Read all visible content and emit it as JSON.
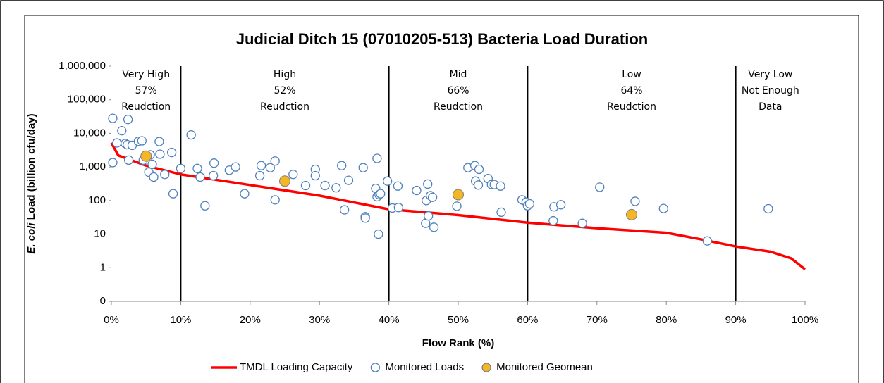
{
  "chart_data": {
    "type": "scatter",
    "title": "Judicial Ditch 15 (07010205-513) Bacteria Load Duration",
    "x_label": "Flow Rank (%)",
    "y_label_italic": "E. coli",
    "y_label_rest": " Load (billion cfu/day)",
    "log_y": true,
    "xlim": [
      0,
      100
    ],
    "ylim": [
      0.1,
      1000000
    ],
    "xticks": [
      {
        "value": 0,
        "label": "0%"
      },
      {
        "value": 10,
        "label": "10%"
      },
      {
        "value": 20,
        "label": "20%"
      },
      {
        "value": 30,
        "label": "30%"
      },
      {
        "value": 40,
        "label": "40%"
      },
      {
        "value": 50,
        "label": "50%"
      },
      {
        "value": 60,
        "label": "60%"
      },
      {
        "value": 70,
        "label": "70%"
      },
      {
        "value": 80,
        "label": "80%"
      },
      {
        "value": 90,
        "label": "90%"
      },
      {
        "value": 100,
        "label": "100%"
      }
    ],
    "yticks": [
      {
        "value": 0.1,
        "label": "0"
      },
      1,
      10,
      100,
      {
        "value": 1000,
        "label": "1,000"
      },
      {
        "value": 10000,
        "label": "10,000"
      },
      {
        "value": 100000,
        "label": "100,000"
      },
      {
        "value": 1000000,
        "label": "1,000,000"
      }
    ],
    "zone_dividers": [
      10,
      40,
      60,
      90
    ],
    "zones": [
      {
        "lines": [
          "Very High",
          "57%",
          "Reudction"
        ]
      },
      {
        "lines": [
          "High",
          "52%",
          "Reudction"
        ]
      },
      {
        "lines": [
          "Mid",
          "66%",
          "Reudction"
        ]
      },
      {
        "lines": [
          "Low",
          "64%",
          "Reudction"
        ]
      },
      {
        "lines": [
          "Very Low",
          "Not Enough",
          "Data"
        ]
      }
    ],
    "legend": "bottom",
    "series": [
      {
        "name": "TMDL Loading Capacity",
        "mark": "line",
        "color": "#ff0000",
        "x": [
          0,
          1,
          5,
          10,
          20,
          30,
          40,
          50,
          60,
          70,
          80,
          85,
          90,
          95,
          98,
          100
        ],
        "values": [
          5200,
          2200,
          1100,
          600,
          290,
          140,
          55,
          37,
          22,
          15,
          11,
          7,
          4.3,
          3,
          1.9,
          0.9
        ]
      },
      {
        "name": "Monitored Loads",
        "mark": "open-circle",
        "color": "#4f81bd",
        "x": [
          0.2,
          0.2,
          0.8,
          1.5,
          2,
          2.4,
          2.3,
          2.5,
          3,
          3.9,
          4.4,
          4.6,
          5.4,
          5.6,
          5.9,
          6.1,
          6.9,
          7,
          7.7,
          8.7,
          8.9,
          10,
          11.5,
          12.4,
          12.8,
          13.5,
          14.7,
          14.8,
          17,
          17.9,
          19.2,
          21.4,
          21.6,
          22.9,
          23.6,
          23.6,
          26.2,
          28,
          29.4,
          29.4,
          30.8,
          32.4,
          33.2,
          33.6,
          34.2,
          36.3,
          36.6,
          36.6,
          38.1,
          38.3,
          38.3,
          38.5,
          38.6,
          38.8,
          39.8,
          40.5,
          41.3,
          41.4,
          44,
          45.3,
          45.4,
          45.6,
          45.7,
          46,
          46.3,
          46.5,
          49.8,
          51.4,
          52.4,
          52.5,
          52.9,
          53,
          54.3,
          54.8,
          55.2,
          56.1,
          56.2,
          59.2,
          59.8,
          60,
          60.3,
          63.7,
          63.8,
          64.8,
          67.9,
          70.4,
          75.5,
          79.6,
          85.9,
          94.7
        ],
        "values": [
          1350,
          28000,
          5200,
          12000,
          5000,
          26000,
          4600,
          1600,
          4400,
          5800,
          6000,
          1600,
          700,
          2300,
          1200,
          500,
          5700,
          2400,
          600,
          2700,
          160,
          900,
          9000,
          900,
          500,
          70,
          550,
          1300,
          800,
          1000,
          160,
          550,
          1100,
          950,
          105,
          1500,
          600,
          280,
          850,
          550,
          280,
          240,
          1100,
          53,
          400,
          950,
          33,
          30,
          230,
          1800,
          130,
          10,
          150,
          160,
          380,
          60,
          270,
          62,
          200,
          21,
          100,
          310,
          35,
          140,
          125,
          16,
          68,
          950,
          1100,
          380,
          290,
          850,
          450,
          300,
          300,
          270,
          45,
          105,
          90,
          70,
          80,
          25,
          65,
          75,
          21,
          250,
          95,
          58,
          6.3,
          57
        ]
      },
      {
        "name": "Monitored Geomean",
        "mark": "filled-circle",
        "color": "#f5b625",
        "x": [
          5,
          25,
          50,
          75
        ],
        "values": [
          2100,
          380,
          150,
          38
        ]
      }
    ]
  }
}
